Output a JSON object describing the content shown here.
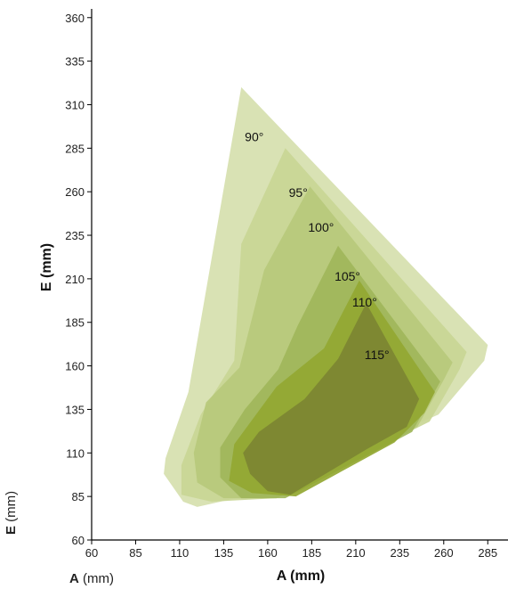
{
  "chart_data": {
    "type": "area",
    "xlabel": "A (mm)",
    "ylabel": "E (mm)",
    "xlim": [
      60,
      297
    ],
    "ylim": [
      60,
      365
    ],
    "x_ticks": [
      "60",
      "85",
      "110",
      "135",
      "160",
      "185",
      "210",
      "235",
      "260",
      "285"
    ],
    "y_ticks": [
      "60",
      "85",
      "110",
      "135",
      "160",
      "185",
      "210",
      "235",
      "260",
      "285",
      "310",
      "335",
      "360"
    ],
    "series": [
      {
        "name": "90°",
        "color": "#d9e2b4",
        "label_at": [
          147,
          289
        ],
        "points": [
          [
            145,
            320
          ],
          [
            285,
            172
          ],
          [
            283,
            163
          ],
          [
            257,
            132
          ],
          [
            155,
            87
          ],
          [
            120,
            79
          ],
          [
            112,
            82
          ],
          [
            101,
            98
          ],
          [
            102,
            107
          ],
          [
            115,
            145
          ]
        ]
      },
      {
        "name": "95°",
        "color": "#c9d695",
        "label_at": [
          172,
          257
        ],
        "points": [
          [
            170,
            285
          ],
          [
            273,
            168
          ],
          [
            269,
            158
          ],
          [
            252,
            128
          ],
          [
            165,
            84
          ],
          [
            128,
            82
          ],
          [
            111,
            86
          ],
          [
            111,
            103
          ],
          [
            122,
            132
          ],
          [
            141,
            163
          ],
          [
            145,
            230
          ]
        ]
      },
      {
        "name": "100°",
        "color": "#b7c97b",
        "label_at": [
          183,
          237
        ],
        "points": [
          [
            184,
            263
          ],
          [
            265,
            162
          ],
          [
            260,
            152
          ],
          [
            245,
            125
          ],
          [
            165,
            84
          ],
          [
            135,
            84
          ],
          [
            120,
            93
          ],
          [
            118,
            110
          ],
          [
            125,
            139
          ],
          [
            144,
            159
          ],
          [
            158,
            215
          ]
        ]
      },
      {
        "name": "105°",
        "color": "#9fb65a",
        "label_at": [
          198,
          209
        ],
        "points": [
          [
            200,
            229
          ],
          [
            258,
            151
          ],
          [
            252,
            140
          ],
          [
            242,
            122
          ],
          [
            170,
            84
          ],
          [
            145,
            84
          ],
          [
            133,
            96
          ],
          [
            133,
            113
          ],
          [
            147,
            135
          ],
          [
            166,
            158
          ],
          [
            177,
            183
          ]
        ]
      },
      {
        "name": "110°",
        "color": "#93a732",
        "label_at": [
          208,
          194
        ],
        "points": [
          [
            212,
            209
          ],
          [
            255,
            145
          ],
          [
            249,
            133
          ],
          [
            232,
            116
          ],
          [
            176,
            85
          ],
          [
            151,
            87
          ],
          [
            138,
            94
          ],
          [
            141,
            115
          ],
          [
            165,
            148
          ],
          [
            192,
            170
          ]
        ]
      },
      {
        "name": "115°",
        "color": "#7c8632",
        "label_at": [
          215,
          164
        ],
        "points": [
          [
            216,
            196
          ],
          [
            246,
            141
          ],
          [
            239,
            125
          ],
          [
            216,
            112
          ],
          [
            173,
            86
          ],
          [
            160,
            88
          ],
          [
            150,
            98
          ],
          [
            146,
            110
          ],
          [
            155,
            122
          ],
          [
            181,
            141
          ],
          [
            200,
            164
          ]
        ]
      }
    ]
  },
  "side_labels": {
    "vertical_letter": "E",
    "vertical_unit": "(mm)",
    "horizontal_letter": "A",
    "horizontal_unit": "(mm)"
  }
}
